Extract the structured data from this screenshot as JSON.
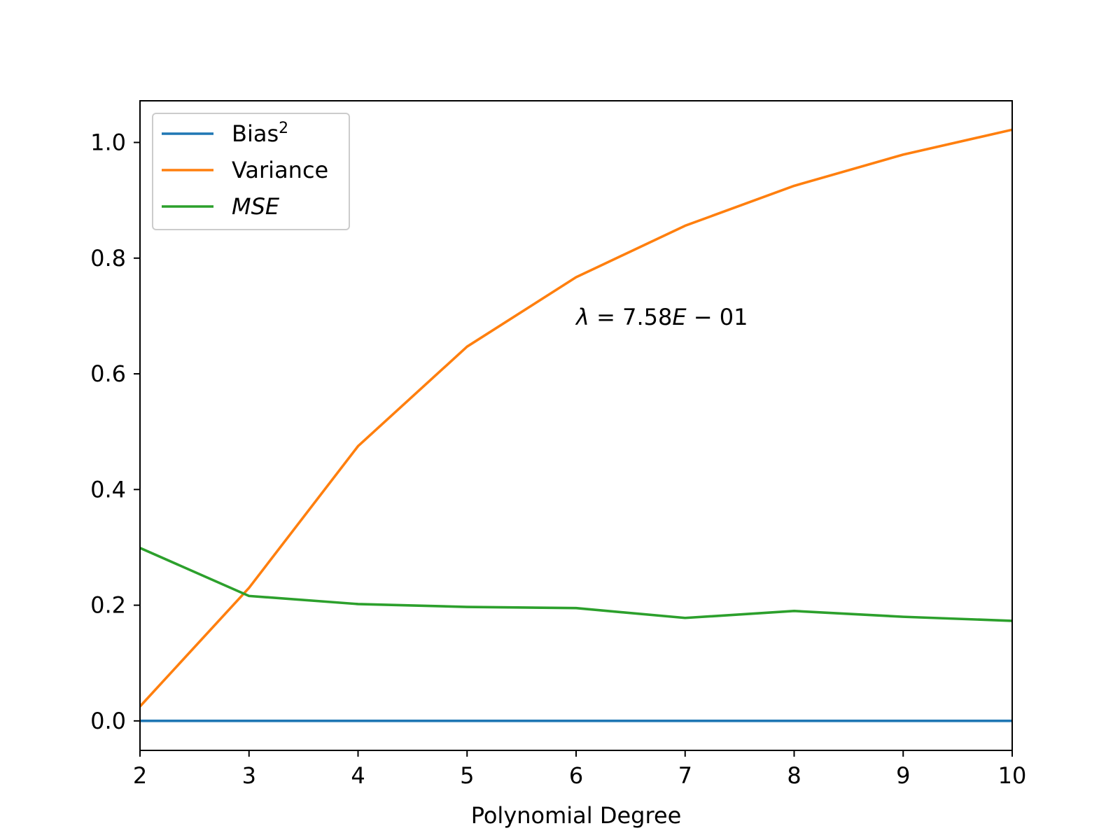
{
  "chart_data": {
    "type": "line",
    "title": "",
    "xlabel": "Polynomial Degree",
    "ylabel": "",
    "x": [
      2,
      3,
      4,
      5,
      6,
      7,
      8,
      9,
      10
    ],
    "xlim": [
      2,
      10
    ],
    "ylim": [
      -0.051,
      1.072
    ],
    "xticks": [
      2,
      3,
      4,
      5,
      6,
      7,
      8,
      9,
      10
    ],
    "yticks": [
      0.0,
      0.2,
      0.4,
      0.6,
      0.8,
      1.0
    ],
    "ytick_labels": [
      "0.0",
      "0.2",
      "0.4",
      "0.6",
      "0.8",
      "1.0"
    ],
    "grid": false,
    "legend_position": "upper-left",
    "series": [
      {
        "name": "Bias²",
        "name_base": "Bias",
        "name_sup": "2",
        "color": "#1f77b4",
        "values": [
          0.0,
          0.0,
          0.0,
          0.0,
          0.0,
          0.0,
          0.0,
          0.0,
          0.0
        ]
      },
      {
        "name": "Variance",
        "color": "#ff7f0e",
        "values": [
          0.025,
          0.23,
          0.475,
          0.647,
          0.767,
          0.856,
          0.925,
          0.979,
          1.022
        ]
      },
      {
        "name": "MSE",
        "color": "#2ca02c",
        "italic": true,
        "values": [
          0.299,
          0.216,
          0.202,
          0.197,
          0.195,
          0.178,
          0.19,
          0.18,
          0.173
        ]
      }
    ],
    "annotation": {
      "text_parts": [
        {
          "text": "λ",
          "italic": true
        },
        {
          "text": " = 7.58",
          "italic": false
        },
        {
          "text": "E",
          "italic": true
        },
        {
          "text": " − 01",
          "italic": false
        }
      ],
      "x": 6.0,
      "y": 0.685
    }
  }
}
